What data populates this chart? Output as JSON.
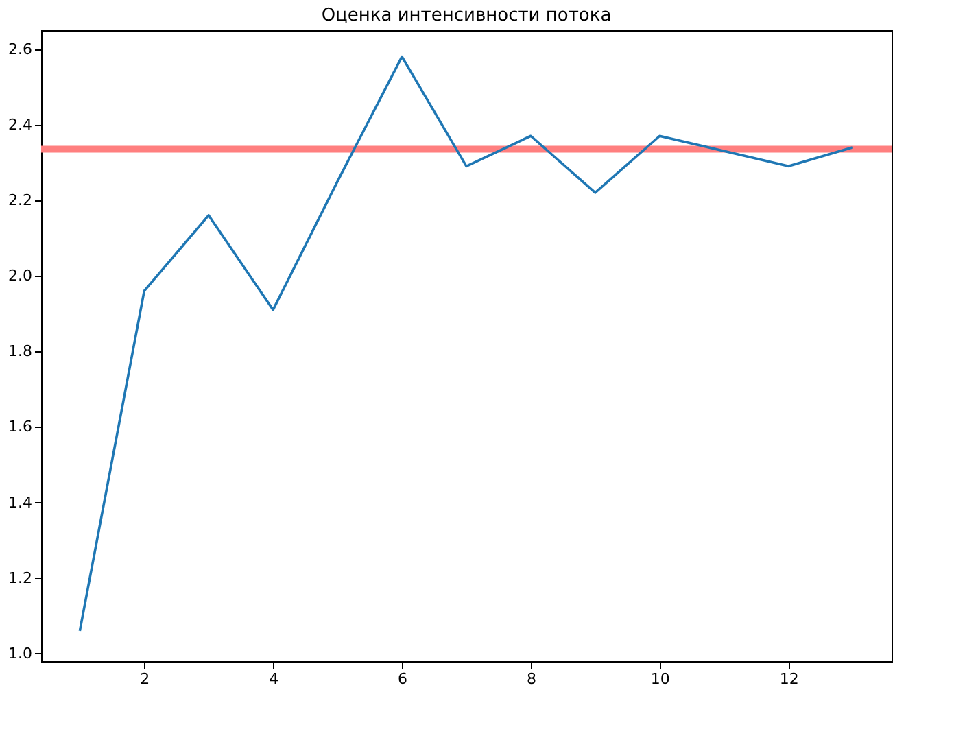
{
  "chart_data": {
    "type": "line",
    "title": "Оценка интенсивности потока",
    "x": [
      1,
      2,
      3,
      4,
      5,
      6,
      7,
      8,
      9,
      10,
      11,
      12,
      13
    ],
    "series": [
      {
        "color": "#1f77b4",
        "values": [
          1.06,
          1.96,
          2.16,
          1.91,
          2.25,
          2.58,
          2.29,
          2.37,
          2.22,
          2.37,
          2.33,
          2.29,
          2.34
        ]
      }
    ],
    "xlim": [
      0.4,
      13.6
    ],
    "xticks": [
      2,
      4,
      6,
      8,
      10,
      12
    ],
    "ylim": [
      0.98,
      2.65
    ],
    "yticks": [
      {
        "value": 1,
        "label": "1.0"
      },
      1.2,
      1.4,
      1.6,
      1.8,
      {
        "value": 2,
        "label": "2.0"
      },
      2.2,
      2.4,
      2.6
    ],
    "ref_lines": [
      {
        "axis": "y",
        "value": 2.335,
        "color": "#ff7f7f"
      }
    ],
    "grid": false,
    "marker": "none",
    "line_style": "solid"
  }
}
